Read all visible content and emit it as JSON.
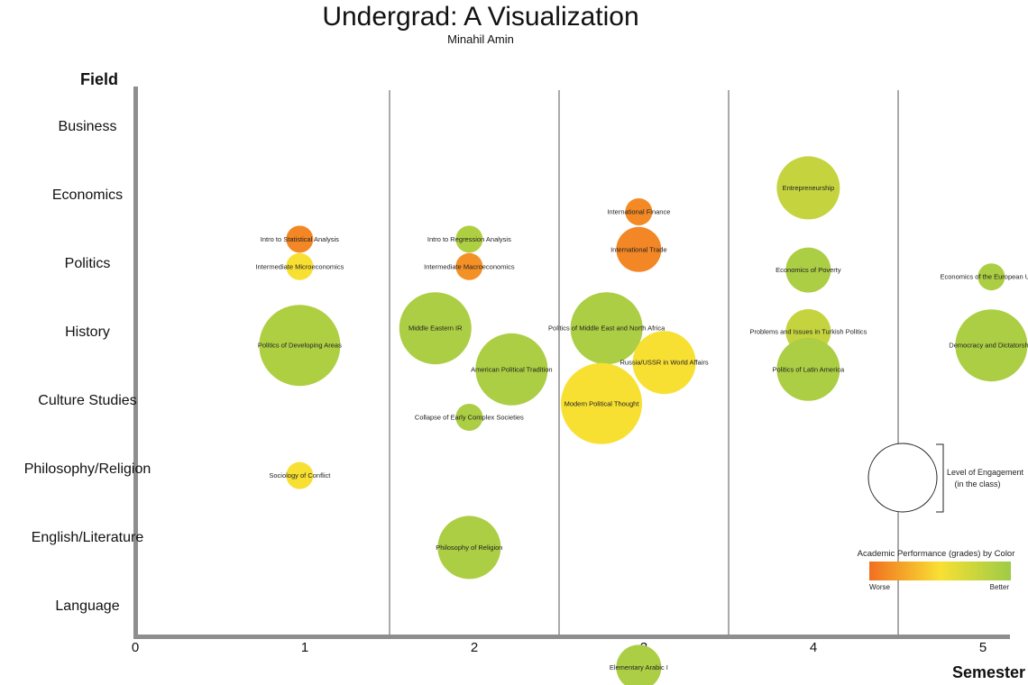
{
  "chart_data": {
    "type": "scatter",
    "title": "Undergrad: A Visualization",
    "subtitle": "Minahil Amin",
    "xlabel": "Semester",
    "ylabel": "Field",
    "xticks": [
      "0",
      "1",
      "2",
      "3",
      "4",
      "5"
    ],
    "xlim": [
      0,
      5.55
    ],
    "categories": [
      "Business",
      "Economics",
      "Politics",
      "History",
      "Culture Studies",
      "Philosophy/Religion",
      "English/Literature",
      "Language"
    ],
    "color_scale": {
      "low": "#f26f21",
      "mid": "#f8e033",
      "high": "#9dcb47"
    },
    "courses": [
      {
        "label": "Intro to Statistical Analysis",
        "semester": 0.97,
        "field": 1.65,
        "engagement": 3,
        "grade": 0.1
      },
      {
        "label": "Intermediate Microeconomics",
        "semester": 0.97,
        "field": 2.05,
        "engagement": 3,
        "grade": 0.5
      },
      {
        "label": "Politics of Developing Areas",
        "semester": 0.97,
        "field": 3.2,
        "engagement": 9,
        "grade": 0.9
      },
      {
        "label": "Sociology of Conflict",
        "semester": 0.97,
        "field": 5.1,
        "engagement": 3,
        "grade": 0.5
      },
      {
        "label": "Intro to Regression Analysis",
        "semester": 1.97,
        "field": 1.65,
        "engagement": 3,
        "grade": 0.9
      },
      {
        "label": "Intermediate Macroeconomics",
        "semester": 1.97,
        "field": 2.05,
        "engagement": 3,
        "grade": 0.15
      },
      {
        "label": "Middle Eastern IR",
        "semester": 1.77,
        "field": 2.95,
        "engagement": 8,
        "grade": 0.92
      },
      {
        "label": "American Political Tradition",
        "semester": 2.22,
        "field": 3.55,
        "engagement": 8,
        "grade": 0.92
      },
      {
        "label": "Collapse of Early Complex Societies",
        "semester": 1.97,
        "field": 4.25,
        "engagement": 3,
        "grade": 0.92
      },
      {
        "label": "Philosophy of Religion",
        "semester": 1.97,
        "field": 6.15,
        "engagement": 7,
        "grade": 0.92
      },
      {
        "label": "International Finance",
        "semester": 2.97,
        "field": 1.25,
        "engagement": 3,
        "grade": 0.12
      },
      {
        "label": "International Trade",
        "semester": 2.97,
        "field": 1.8,
        "engagement": 5,
        "grade": 0.1
      },
      {
        "label": "Politics of Middle East and North Africa",
        "semester": 2.78,
        "field": 2.95,
        "engagement": 8,
        "grade": 0.92
      },
      {
        "label": "Russia/USSR in World Affairs",
        "semester": 3.12,
        "field": 3.45,
        "engagement": 7,
        "grade": 0.5
      },
      {
        "label": "Modern Political Thought",
        "semester": 2.75,
        "field": 4.05,
        "engagement": 9,
        "grade": 0.5
      },
      {
        "label": "Elementary Arabic I",
        "semester": 2.97,
        "field": 7.9,
        "engagement": 5,
        "grade": 0.92
      },
      {
        "label": "Entrepreneurship",
        "semester": 3.97,
        "field": 0.9,
        "engagement": 7,
        "grade": 0.78
      },
      {
        "label": "Economics of Poverty",
        "semester": 3.97,
        "field": 2.1,
        "engagement": 5,
        "grade": 0.92
      },
      {
        "label": "Problems and Issues in Turkish Politics",
        "semester": 3.97,
        "field": 3.0,
        "engagement": 5,
        "grade": 0.78
      },
      {
        "label": "Politics of Latin America",
        "semester": 3.97,
        "field": 3.55,
        "engagement": 7,
        "grade": 0.92
      },
      {
        "label": "Economics of the European Union",
        "semester": 5.05,
        "field": 2.2,
        "engagement": 3,
        "grade": 0.92
      },
      {
        "label": "Democracy and Dictatorship",
        "semester": 5.05,
        "field": 3.2,
        "engagement": 8,
        "grade": 0.92
      }
    ],
    "legend": {
      "size_label_line1": "Level of Engagement",
      "size_label_line2": "(in the class)",
      "color_title": "Academic Performance (grades) by Color",
      "color_low": "Worse",
      "color_high": "Better"
    }
  }
}
